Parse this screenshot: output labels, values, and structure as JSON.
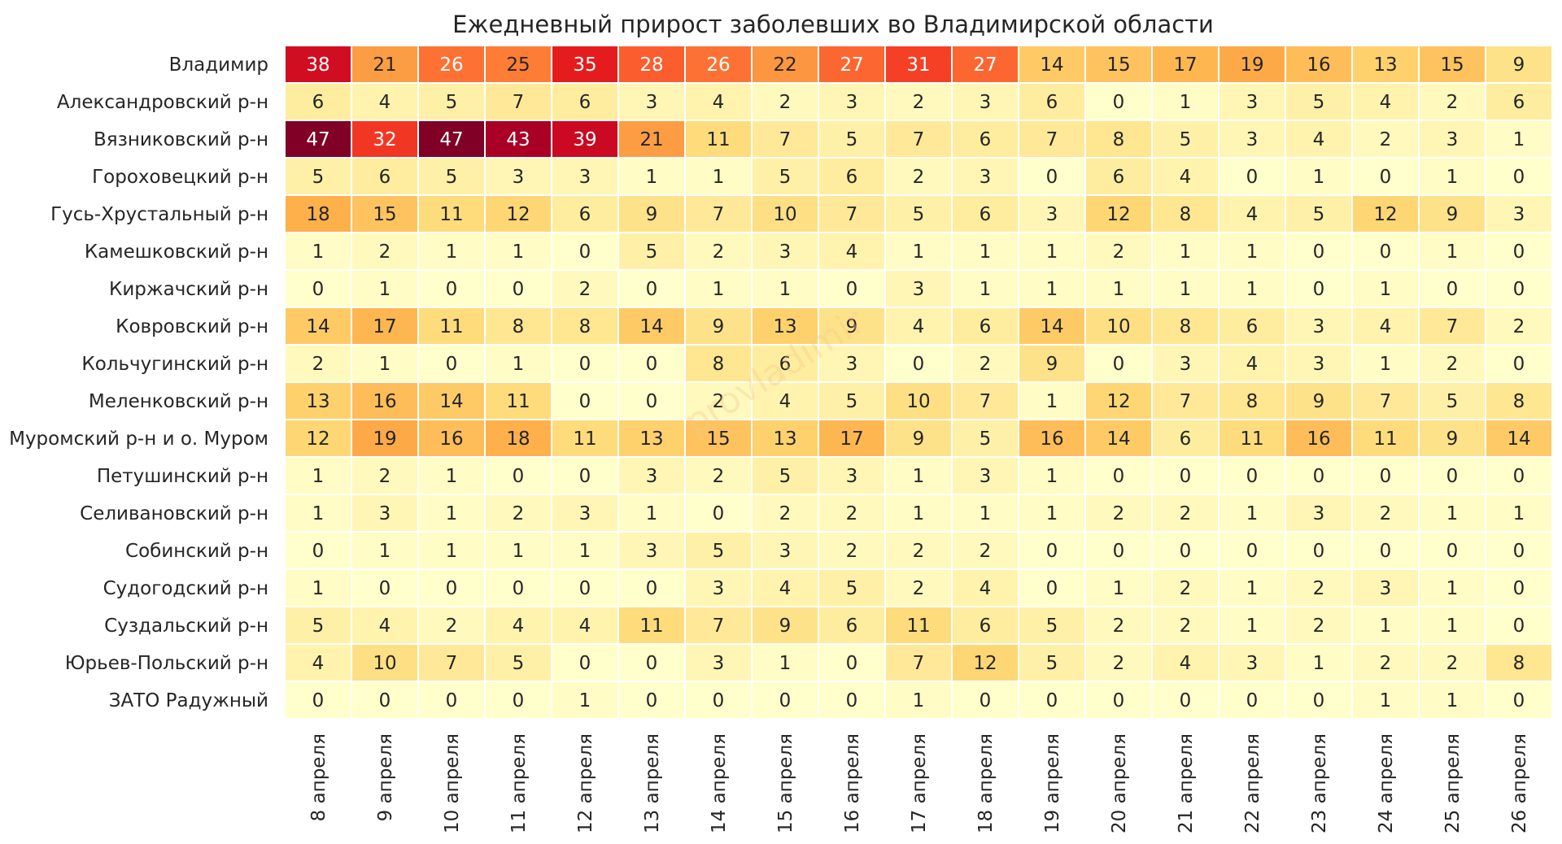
{
  "chart_data": {
    "type": "heatmap",
    "title": "Ежедневный прирост заболевших во Владимирской области",
    "watermark": "provladimir",
    "colormap": "YlOrRd",
    "vmin": 0,
    "vmax": 47,
    "columns": [
      "8 апреля",
      "9 апреля",
      "10 апреля",
      "11 апреля",
      "12 апреля",
      "13 апреля",
      "14 апреля",
      "15 апреля",
      "16 апреля",
      "17 апреля",
      "18 апреля",
      "19 апреля",
      "20 апреля",
      "21 апреля",
      "22 апреля",
      "23 апреля",
      "24 апреля",
      "25 апреля",
      "26 апреля"
    ],
    "rows": [
      "Владимир",
      "Александровский р-н",
      "Вязниковский р-н",
      "Гороховецкий р-н",
      "Гусь-Хрустальный р-н",
      "Камешковский р-н",
      "Киржачский р-н",
      "Ковровский р-н",
      "Кольчугинский р-н",
      "Меленковский р-н",
      "Муромский р-н и о. Муром",
      "Петушинский р-н",
      "Селивановский р-н",
      "Собинский р-н",
      "Судогодский р-н",
      "Суздальский р-н",
      "Юрьев-Польский р-н",
      "ЗАТО Радужный"
    ],
    "values": [
      [
        38,
        21,
        26,
        25,
        35,
        28,
        26,
        22,
        27,
        31,
        27,
        14,
        15,
        17,
        19,
        16,
        13,
        15,
        9
      ],
      [
        6,
        4,
        5,
        7,
        6,
        3,
        4,
        2,
        3,
        2,
        3,
        6,
        0,
        1,
        3,
        5,
        4,
        2,
        6
      ],
      [
        47,
        32,
        47,
        43,
        39,
        21,
        11,
        7,
        5,
        7,
        6,
        7,
        8,
        5,
        3,
        4,
        2,
        3,
        1
      ],
      [
        5,
        6,
        5,
        3,
        3,
        1,
        1,
        5,
        6,
        2,
        3,
        0,
        6,
        4,
        0,
        1,
        0,
        1,
        0
      ],
      [
        18,
        15,
        11,
        12,
        6,
        9,
        7,
        10,
        7,
        5,
        6,
        3,
        12,
        8,
        4,
        5,
        12,
        9,
        3
      ],
      [
        1,
        2,
        1,
        1,
        0,
        5,
        2,
        3,
        4,
        1,
        1,
        1,
        2,
        1,
        1,
        0,
        0,
        1,
        0
      ],
      [
        0,
        1,
        0,
        0,
        2,
        0,
        1,
        1,
        0,
        3,
        1,
        1,
        1,
        1,
        1,
        0,
        1,
        0,
        0
      ],
      [
        14,
        17,
        11,
        8,
        8,
        14,
        9,
        13,
        9,
        4,
        6,
        14,
        10,
        8,
        6,
        3,
        4,
        7,
        2
      ],
      [
        2,
        1,
        0,
        1,
        0,
        0,
        8,
        6,
        3,
        0,
        2,
        9,
        0,
        3,
        4,
        3,
        1,
        2,
        0
      ],
      [
        13,
        16,
        14,
        11,
        0,
        0,
        2,
        4,
        5,
        10,
        7,
        1,
        12,
        7,
        8,
        9,
        7,
        5,
        8
      ],
      [
        12,
        19,
        16,
        18,
        11,
        13,
        15,
        13,
        17,
        9,
        5,
        16,
        14,
        6,
        11,
        16,
        11,
        9,
        14
      ],
      [
        1,
        2,
        1,
        0,
        0,
        3,
        2,
        5,
        3,
        1,
        3,
        1,
        0,
        0,
        0,
        0,
        0,
        0,
        0
      ],
      [
        1,
        3,
        1,
        2,
        3,
        1,
        0,
        2,
        2,
        1,
        1,
        1,
        2,
        2,
        1,
        3,
        2,
        1,
        1
      ],
      [
        0,
        1,
        1,
        1,
        1,
        3,
        5,
        3,
        2,
        2,
        2,
        0,
        0,
        0,
        0,
        0,
        0,
        0,
        0
      ],
      [
        1,
        0,
        0,
        0,
        0,
        0,
        3,
        4,
        5,
        2,
        4,
        0,
        1,
        2,
        1,
        2,
        3,
        1,
        0
      ],
      [
        5,
        4,
        2,
        4,
        4,
        11,
        7,
        9,
        6,
        11,
        6,
        5,
        2,
        2,
        1,
        2,
        1,
        1,
        0
      ],
      [
        4,
        10,
        7,
        5,
        0,
        0,
        3,
        1,
        0,
        7,
        12,
        5,
        2,
        4,
        3,
        1,
        2,
        2,
        8
      ],
      [
        0,
        0,
        0,
        0,
        1,
        0,
        0,
        0,
        0,
        1,
        0,
        0,
        0,
        0,
        0,
        0,
        1,
        1,
        0
      ]
    ]
  }
}
